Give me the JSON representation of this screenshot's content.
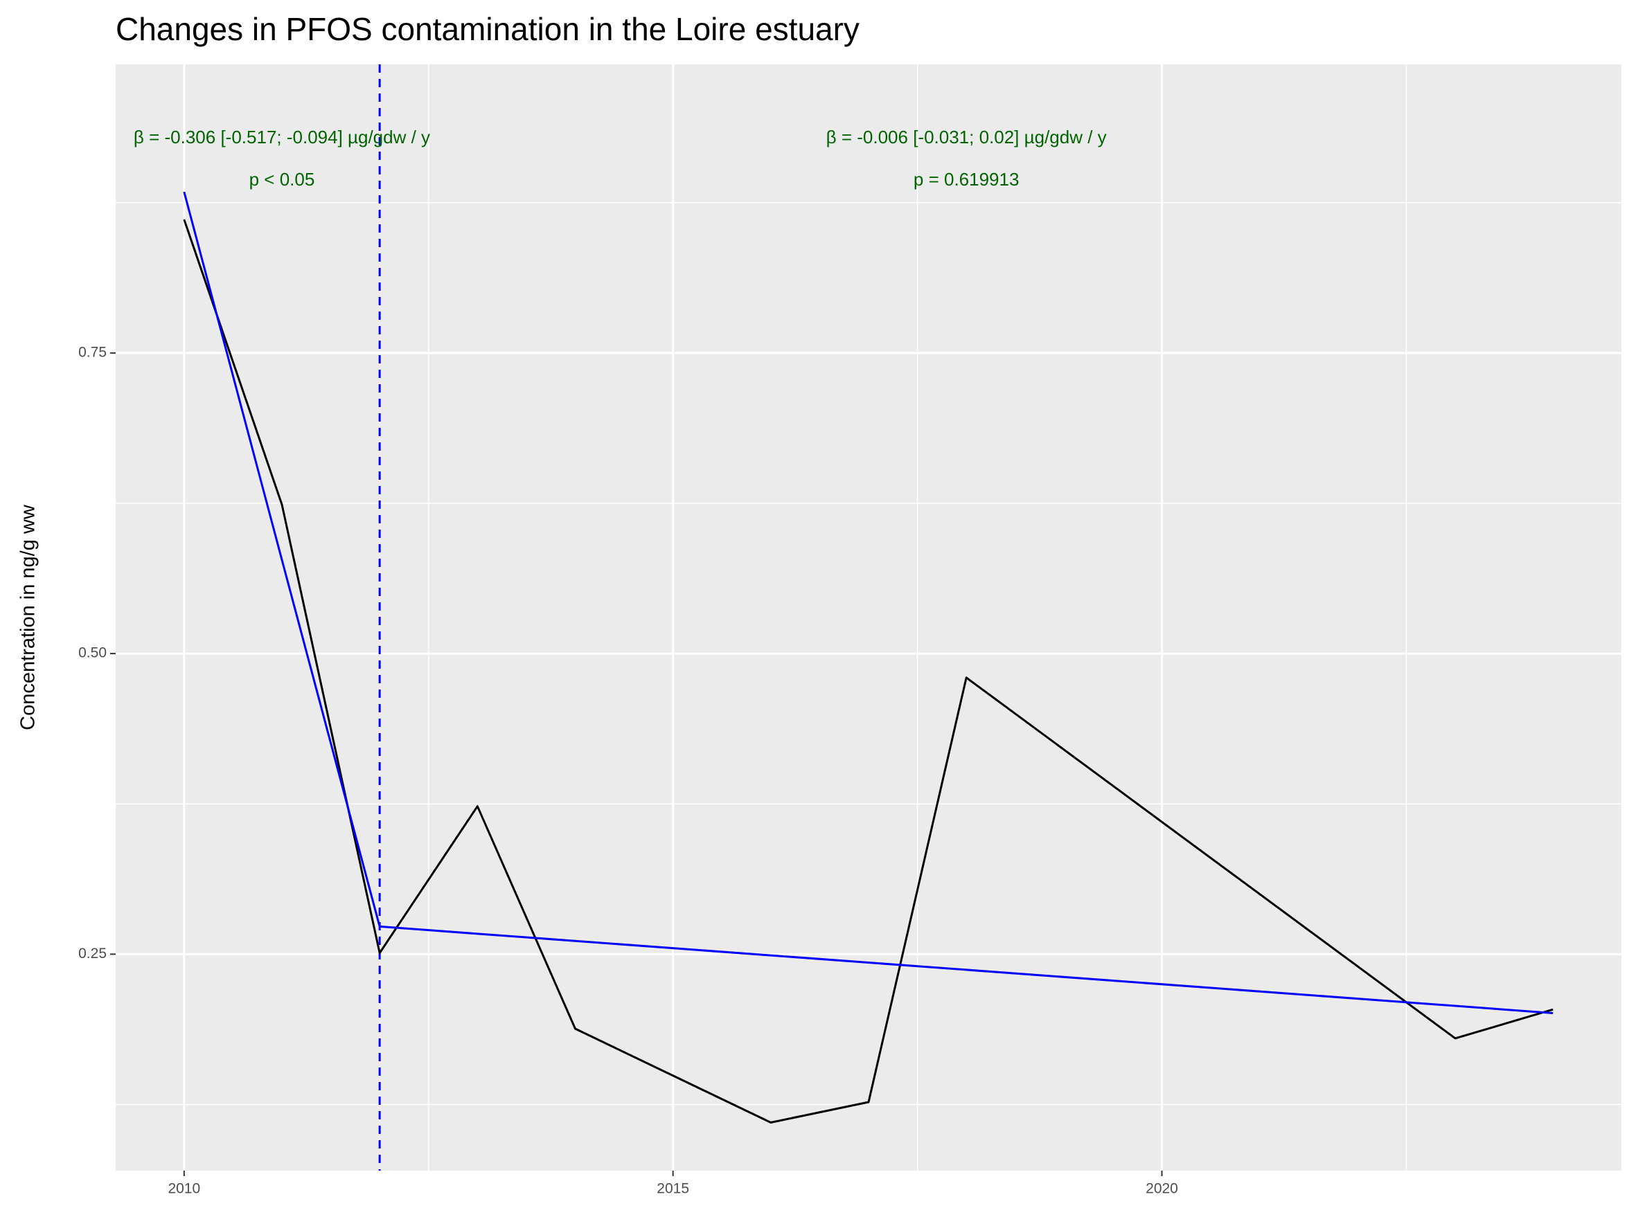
{
  "chart_data": {
    "type": "line",
    "title": "Changes in PFOS contamination in the Loire estuary",
    "y_label": "Concentration in ng/g ww",
    "x": [
      2010,
      2011,
      2012,
      2013,
      2014,
      2016,
      2017,
      2018,
      2023,
      2024
    ],
    "series": [
      {
        "name": "Observed",
        "color": "#000000",
        "values": [
          0.861,
          0.624,
          0.251,
          0.373,
          0.188,
          0.11,
          0.127,
          0.48,
          0.18,
          0.204
        ]
      },
      {
        "name": "Segmented fit",
        "color": "#0000ff",
        "values": [
          0.884,
          0.578,
          0.273,
          0.267,
          0.261,
          0.249,
          0.243,
          0.237,
          0.207,
          0.201
        ]
      }
    ],
    "breakpoint": 2012,
    "breakpoint_color": "#0000ff",
    "annotations": [
      {
        "text": "β = -0.306 [-0.517; -0.094] µg/gdw / y",
        "p": "p < 0.05"
      },
      {
        "text": "β = -0.006 [-0.031; 0.02] µg/gdw / y",
        "p": "p = 0.619913"
      }
    ],
    "annotation_color": "#006400",
    "xlim": [
      2009.3,
      2024.7
    ],
    "xticks": [
      2010,
      2015,
      2020
    ],
    "ylim": [
      0.07,
      0.99
    ],
    "yticks": [
      0.25,
      {
        "value": 0.5,
        "label": "0.50"
      },
      0.75
    ],
    "grid": true
  }
}
